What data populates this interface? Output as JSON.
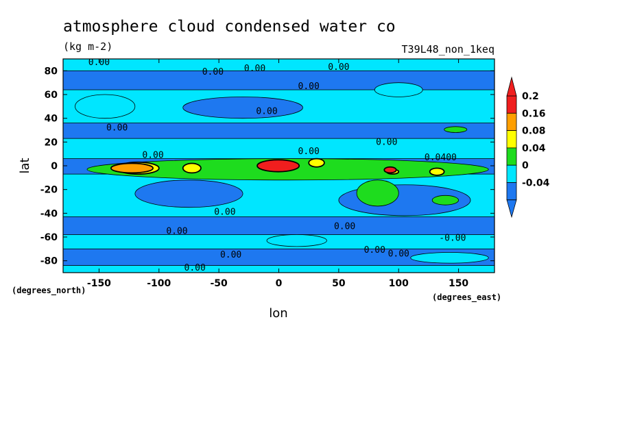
{
  "chart_data": {
    "type": "heatmap",
    "title": "atmosphere cloud condensed water co",
    "units": "(kg m-2)",
    "experiment": "T39L48_non_1keq",
    "xlabel": "lon",
    "ylabel": "lat",
    "x_units_label": "(degrees_east)",
    "y_units_label": "(degrees_north)",
    "xlim": [
      -180,
      180
    ],
    "ylim": [
      -90,
      90
    ],
    "x_ticks": [
      -150,
      -100,
      -50,
      0,
      50,
      100,
      150
    ],
    "x_tick_labels": [
      "-150",
      "-100",
      "-50",
      "0",
      "50",
      "100",
      "150"
    ],
    "y_ticks": [
      -80,
      -60,
      -40,
      -20,
      0,
      20,
      40,
      60,
      80
    ],
    "y_tick_labels": [
      "-80",
      "-60",
      "-40",
      "-20",
      "0",
      "20",
      "40",
      "60",
      "80"
    ],
    "colorbar": {
      "levels": [
        -0.04,
        0,
        0.04,
        0.08,
        0.16,
        0.2
      ],
      "labels": [
        "-0.04",
        "0",
        "0.04",
        "0.08",
        "0.16",
        "0.2"
      ],
      "colors": [
        "#1e78f0",
        "#00e6ff",
        "#1edc1e",
        "#ffff00",
        "#ff9f00",
        "#f01e1e"
      ],
      "extend": "both"
    },
    "contour_labels": [
      {
        "text": "0.00",
        "lon": -150,
        "lat": 87
      },
      {
        "text": "0.00",
        "lon": -55,
        "lat": 79
      },
      {
        "text": "0.00",
        "lon": -20,
        "lat": 82
      },
      {
        "text": "0.00",
        "lon": 50,
        "lat": 83
      },
      {
        "text": "0.00",
        "lon": 25,
        "lat": 67
      },
      {
        "text": "0.00",
        "lon": -10,
        "lat": 46
      },
      {
        "text": "0.00",
        "lon": -135,
        "lat": 32
      },
      {
        "text": "0.00",
        "lon": -105,
        "lat": 9
      },
      {
        "text": "0.00",
        "lon": 25,
        "lat": 12
      },
      {
        "text": "0.00",
        "lon": 90,
        "lat": 20
      },
      {
        "text": "0.0400",
        "lon": 135,
        "lat": 7
      },
      {
        "text": "0.00",
        "lon": -45,
        "lat": -39
      },
      {
        "text": "0.00",
        "lon": -85,
        "lat": -55
      },
      {
        "text": "0.00",
        "lon": 55,
        "lat": -51
      },
      {
        "text": "-0.00",
        "lon": 145,
        "lat": -61
      },
      {
        "text": "0.00",
        "lon": -40,
        "lat": -75
      },
      {
        "text": "0.00",
        "lon": 80,
        "lat": -71
      },
      {
        "text": "0.00",
        "lon": 100,
        "lat": -74
      },
      {
        "text": "0.00",
        "lon": -70,
        "lat": -86
      }
    ],
    "regions": [
      {
        "level": -0.04,
        "shape": "band",
        "lon": [
          -180,
          180
        ],
        "lat": [
          -7,
          6
        ]
      },
      {
        "level": -0.04,
        "shape": "band",
        "lon": [
          -180,
          180
        ],
        "lat": [
          -84,
          -70
        ]
      },
      {
        "level": -0.04,
        "shape": "band",
        "lon": [
          -180,
          180
        ],
        "lat": [
          -58,
          -43
        ]
      },
      {
        "level": -0.04,
        "shape": "band",
        "lon": [
          -180,
          180
        ],
        "lat": [
          64,
          80
        ]
      },
      {
        "level": -0.04,
        "shape": "band",
        "lon": [
          -180,
          180
        ],
        "lat": [
          23,
          36
        ]
      },
      {
        "level": -0.04,
        "shape": "blob",
        "lon": [
          -120,
          -30
        ],
        "lat": [
          -35,
          -12
        ]
      },
      {
        "level": -0.04,
        "shape": "blob",
        "lon": [
          50,
          160
        ],
        "lat": [
          -42,
          -16
        ]
      },
      {
        "level": -0.04,
        "shape": "blob",
        "lon": [
          -80,
          20
        ],
        "lat": [
          40,
          58
        ]
      },
      {
        "level": 0.0,
        "shape": "blob",
        "lon": [
          -10,
          40
        ],
        "lat": [
          -68,
          -58
        ]
      },
      {
        "level": 0.0,
        "shape": "blob",
        "lon": [
          110,
          175
        ],
        "lat": [
          -82,
          -73
        ]
      },
      {
        "level": 0.0,
        "shape": "blob",
        "lon": [
          -170,
          -120
        ],
        "lat": [
          40,
          60
        ]
      },
      {
        "level": 0.0,
        "shape": "blob",
        "lon": [
          80,
          120
        ],
        "lat": [
          58,
          70
        ]
      },
      {
        "level": 0.04,
        "shape": "blob",
        "lon": [
          -160,
          175
        ],
        "lat": [
          -12,
          6
        ]
      },
      {
        "level": 0.04,
        "shape": "blob",
        "lon": [
          65,
          100
        ],
        "lat": [
          -34,
          -12
        ]
      },
      {
        "level": 0.04,
        "shape": "blob",
        "lon": [
          128,
          150
        ],
        "lat": [
          -33,
          -25
        ]
      },
      {
        "level": 0.04,
        "shape": "blob",
        "lon": [
          138,
          157
        ],
        "lat": [
          28,
          33
        ]
      },
      {
        "level": 0.08,
        "shape": "blob",
        "lon": [
          -135,
          -100
        ],
        "lat": [
          -7,
          3
        ]
      },
      {
        "level": 0.08,
        "shape": "blob",
        "lon": [
          -80,
          -65
        ],
        "lat": [
          -6,
          2
        ]
      },
      {
        "level": 0.08,
        "shape": "blob",
        "lon": [
          25,
          38
        ],
        "lat": [
          -1,
          6
        ]
      },
      {
        "level": 0.08,
        "shape": "blob",
        "lon": [
          90,
          100
        ],
        "lat": [
          -7,
          -3
        ]
      },
      {
        "level": 0.08,
        "shape": "blob",
        "lon": [
          126,
          138
        ],
        "lat": [
          -8,
          -2
        ]
      },
      {
        "level": 0.16,
        "shape": "blob",
        "lon": [
          -140,
          -105
        ],
        "lat": [
          -6,
          2
        ]
      },
      {
        "level": 0.2,
        "shape": "blob",
        "lon": [
          -18,
          17
        ],
        "lat": [
          -5,
          5
        ]
      },
      {
        "level": 0.2,
        "shape": "blob",
        "lon": [
          88,
          98
        ],
        "lat": [
          -6,
          -1
        ]
      }
    ]
  }
}
